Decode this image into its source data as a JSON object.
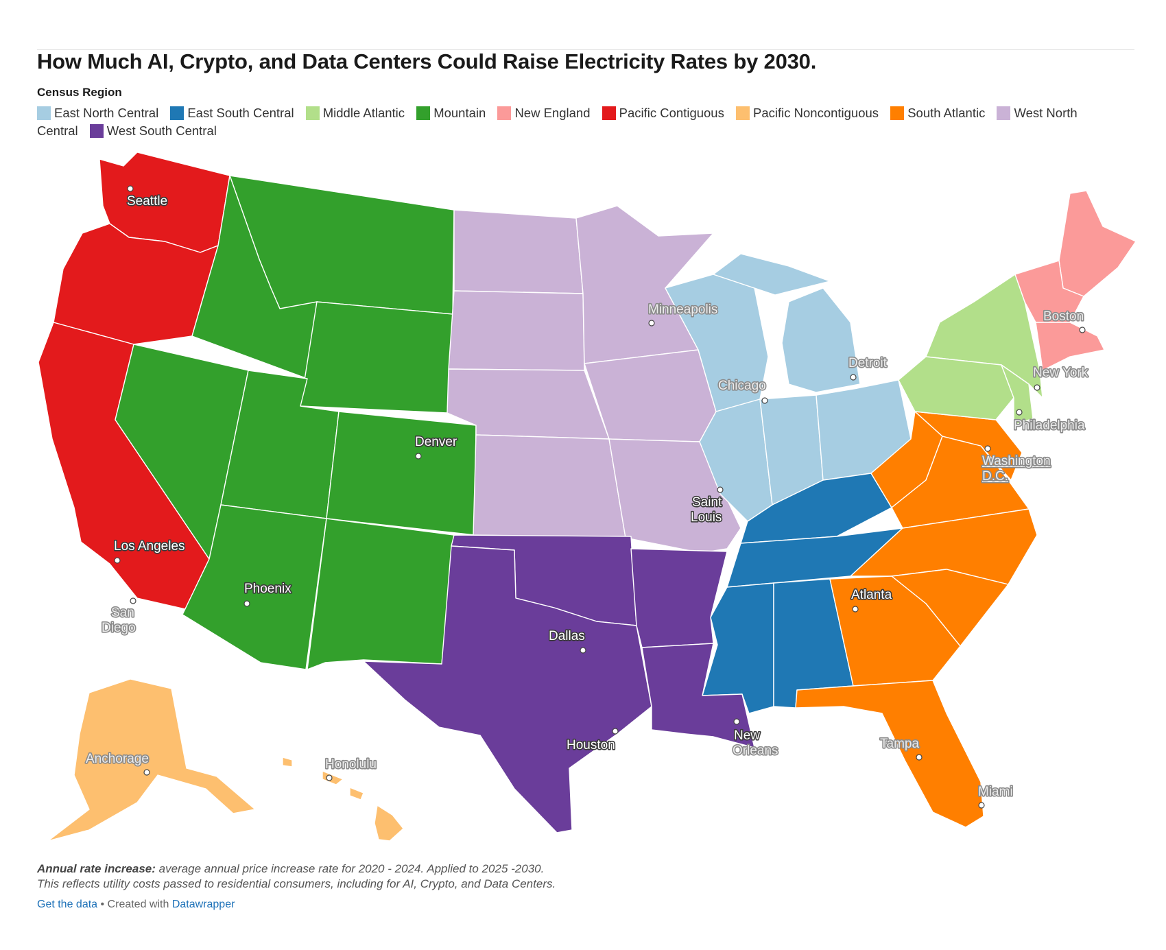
{
  "title": "How Much AI, Crypto, and Data Centers Could Raise Electricity Rates by 2030.",
  "legend": {
    "title": "Census Region",
    "items": [
      {
        "label": "East North Central",
        "color": "#a6cde2"
      },
      {
        "label": "East South Central",
        "color": "#1f78b4"
      },
      {
        "label": "Middle Atlantic",
        "color": "#b2df8a"
      },
      {
        "label": "Mountain",
        "color": "#33a02c"
      },
      {
        "label": "New England",
        "color": "#fb9a99"
      },
      {
        "label": "Pacific Contiguous",
        "color": "#e31a1c"
      },
      {
        "label": "Pacific Noncontiguous",
        "color": "#fdbf6f"
      },
      {
        "label": "South Atlantic",
        "color": "#ff7f00"
      },
      {
        "label": "West North Central",
        "color": "#cab2d6"
      },
      {
        "label": "West South Central",
        "color": "#6a3d9a"
      }
    ]
  },
  "cities": [
    {
      "name": "Seattle"
    },
    {
      "name": "Minneapolis"
    },
    {
      "name": "Boston"
    },
    {
      "name": "Detroit"
    },
    {
      "name": "Chicago"
    },
    {
      "name": "New York"
    },
    {
      "name": "Philadelphia"
    },
    {
      "name": "Denver"
    },
    {
      "name": "Washington D.C."
    },
    {
      "name": "Saint Louis"
    },
    {
      "name": "Los Angeles"
    },
    {
      "name": "Phoenix"
    },
    {
      "name": "San Diego"
    },
    {
      "name": "Atlanta"
    },
    {
      "name": "Dallas"
    },
    {
      "name": "Houston"
    },
    {
      "name": "New Orleans"
    },
    {
      "name": "Tampa"
    },
    {
      "name": "Anchorage"
    },
    {
      "name": "Honolulu"
    },
    {
      "name": "Miami"
    }
  ],
  "notes": {
    "bold": "Annual rate increase:",
    "line1": " average annual price increase rate for 2020 - 2024. Applied to 2025 -2030.",
    "line2": "This reflects utility costs passed to residential consumers, including for AI, Crypto, and Data Centers."
  },
  "credit": {
    "get_data": "Get the data",
    "separator": " • Created with ",
    "tool": "Datawrapper"
  }
}
